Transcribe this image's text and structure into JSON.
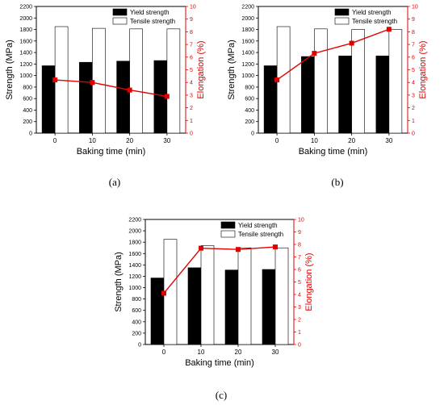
{
  "figure": {
    "captions": [
      "(a)",
      "(b)",
      "(c)"
    ]
  },
  "colors": {
    "yield_bar": "#000000",
    "tensile_bar": "#ffffff",
    "elongation_line": "#e00000"
  },
  "chart_data": [
    {
      "type": "bar",
      "caption": "(a)",
      "categories": [
        "0",
        "10",
        "20",
        "30"
      ],
      "xlabel": "Baking time (min)",
      "ylabel": "Strength (MPa)",
      "y2label": "Elongation (%)",
      "ylim": [
        0,
        2200
      ],
      "y2lim": [
        0,
        10
      ],
      "yticks": [
        "0",
        "200",
        "400",
        "600",
        "800",
        "1000",
        "1200",
        "1400",
        "1600",
        "1800",
        "2000",
        "2200"
      ],
      "y2ticks": [
        "0",
        "1",
        "2",
        "3",
        "4",
        "5",
        "6",
        "7",
        "8",
        "9",
        "10"
      ],
      "legend_position": "top-right",
      "series": [
        {
          "name": "Yield strength",
          "kind": "bar",
          "axis": "left",
          "values": [
            1170,
            1230,
            1250,
            1260
          ]
        },
        {
          "name": "Tensile strength",
          "kind": "bar",
          "axis": "left",
          "values": [
            1850,
            1820,
            1810,
            1810
          ]
        },
        {
          "name": "",
          "kind": "line",
          "axis": "right",
          "values": [
            4.2,
            4.0,
            3.4,
            2.9
          ]
        }
      ]
    },
    {
      "type": "bar",
      "caption": "(b)",
      "categories": [
        "0",
        "10",
        "20",
        "30"
      ],
      "xlabel": "Baking time (min)",
      "ylabel": "Strength (MPa)",
      "y2label": "Elongation (%)",
      "ylim": [
        0,
        2200
      ],
      "y2lim": [
        0,
        10
      ],
      "yticks": [
        "0",
        "200",
        "400",
        "600",
        "800",
        "1000",
        "1200",
        "1400",
        "1600",
        "1800",
        "2000",
        "2200"
      ],
      "y2ticks": [
        "0",
        "1",
        "2",
        "3",
        "4",
        "5",
        "6",
        "7",
        "8",
        "9",
        "10"
      ],
      "legend_position": "top-right",
      "series": [
        {
          "name": "Yield strength",
          "kind": "bar",
          "axis": "left",
          "values": [
            1170,
            1330,
            1340,
            1340
          ]
        },
        {
          "name": "Tensile strength",
          "kind": "bar",
          "axis": "left",
          "values": [
            1850,
            1810,
            1800,
            1800
          ]
        },
        {
          "name": "",
          "kind": "line",
          "axis": "right",
          "values": [
            4.2,
            6.3,
            7.1,
            8.2
          ]
        }
      ]
    },
    {
      "type": "bar",
      "caption": "(c)",
      "categories": [
        "0",
        "10",
        "20",
        "30"
      ],
      "xlabel": "Baking time (min)",
      "ylabel": "Strength (MPa)",
      "y2label": "Elongation (%)",
      "ylim": [
        0,
        2200
      ],
      "y2lim": [
        0,
        10
      ],
      "yticks": [
        "0",
        "200",
        "400",
        "600",
        "800",
        "1000",
        "1200",
        "1400",
        "1600",
        "1800",
        "2000",
        "2200"
      ],
      "y2ticks": [
        "0",
        "1",
        "2",
        "3",
        "4",
        "5",
        "6",
        "7",
        "8",
        "9",
        "10"
      ],
      "legend_position": "top-right",
      "series": [
        {
          "name": "Yield strength",
          "kind": "bar",
          "axis": "left",
          "values": [
            1170,
            1350,
            1310,
            1320
          ]
        },
        {
          "name": "Tensile strength",
          "kind": "bar",
          "axis": "left",
          "values": [
            1850,
            1740,
            1700,
            1700
          ]
        },
        {
          "name": "",
          "kind": "line",
          "axis": "right",
          "values": [
            4.1,
            7.7,
            7.6,
            7.8
          ]
        }
      ]
    }
  ]
}
